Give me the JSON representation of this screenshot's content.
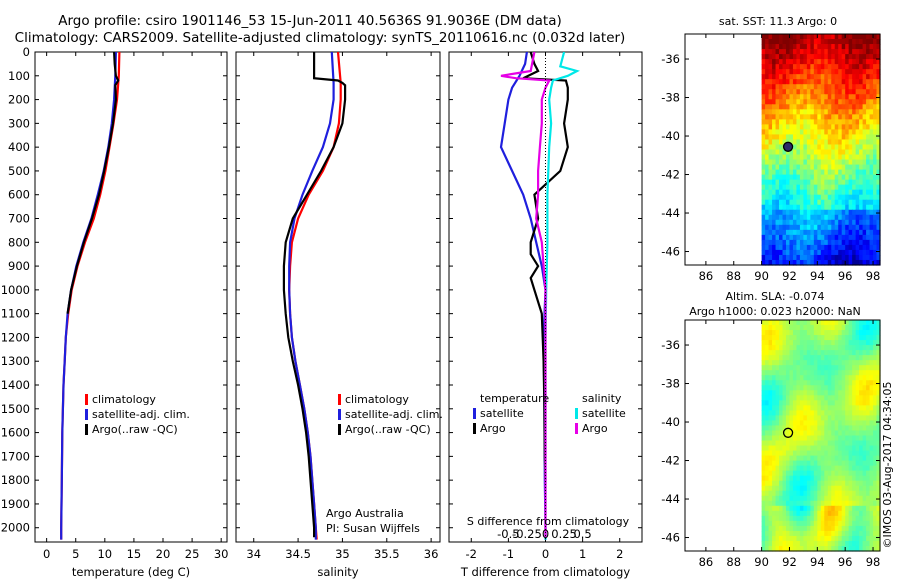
{
  "title": {
    "line1": "Argo profile: csiro 1901146_53 15-Jun-2011 40.5636S 91.9036E (DM data)",
    "line2": "Climatology: CARS2009. Satellite-adjusted climatology: synTS_20110616.nc (0.032d later)"
  },
  "colors": {
    "climatology": "#ff0000",
    "satellite": "#1f1fdd",
    "argo": "#000000",
    "sal_satellite": "#00e8e8",
    "sal_argo": "#e600e6"
  },
  "chart_data": [
    {
      "type": "line",
      "id": "temperature",
      "xlabel": "temperature (deg C)",
      "ylabel": "",
      "xlim": [
        -2,
        31
      ],
      "ylim": [
        2060,
        0
      ],
      "xticks": [
        "0",
        "5",
        "10",
        "15",
        "20",
        "25",
        "30"
      ],
      "xtick_values": [
        0,
        5,
        10,
        15,
        20,
        25,
        30
      ],
      "yticks": [
        "0",
        "100",
        "200",
        "300",
        "400",
        "500",
        "600",
        "700",
        "800",
        "900",
        "1000",
        "1100",
        "1200",
        "1300",
        "1400",
        "1500",
        "1600",
        "1700",
        "1800",
        "1900",
        "2000"
      ],
      "ytick_values": [
        0,
        100,
        200,
        300,
        400,
        500,
        600,
        700,
        800,
        900,
        1000,
        1100,
        1200,
        1300,
        1400,
        1500,
        1600,
        1700,
        1800,
        1900,
        2000
      ],
      "legend": [
        "climatology",
        "satellite-adj. clim.",
        "Argo(..raw -QC)"
      ],
      "series": [
        {
          "name": "climatology",
          "color": "climatology",
          "depth": [
            0,
            100,
            200,
            300,
            400,
            500,
            600,
            700,
            800,
            900,
            1000,
            1100,
            1200,
            1300,
            1400,
            1600,
            1800,
            2000,
            2050
          ],
          "values": [
            12.5,
            12.4,
            12.1,
            11.5,
            10.8,
            10.1,
            9.2,
            8.1,
            6.6,
            5.3,
            4.3,
            3.7,
            3.3,
            3.1,
            2.9,
            2.7,
            2.6,
            2.5,
            2.5
          ]
        },
        {
          "name": "satellite-adj. clim.",
          "color": "satellite",
          "depth": [
            0,
            100,
            200,
            300,
            400,
            500,
            600,
            700,
            800,
            900,
            1000,
            1100,
            1200,
            1300,
            1400,
            1600,
            1800,
            2000,
            2050
          ],
          "values": [
            11.9,
            11.8,
            11.6,
            11.2,
            10.6,
            9.8,
            8.8,
            7.7,
            6.3,
            5.1,
            4.2,
            3.6,
            3.3,
            3.1,
            2.9,
            2.7,
            2.6,
            2.5,
            2.5
          ]
        },
        {
          "name": "Argo(..raw -QC)",
          "color": "argo",
          "depth": [
            0,
            50,
            100,
            120,
            140,
            200,
            300,
            400,
            500,
            600,
            700,
            800,
            900,
            1000,
            1100
          ],
          "values": [
            11.6,
            11.7,
            11.9,
            12.3,
            11.8,
            11.9,
            11.4,
            10.7,
            9.9,
            9.0,
            7.8,
            6.4,
            5.2,
            4.2,
            3.6
          ]
        }
      ]
    },
    {
      "type": "line",
      "id": "salinity",
      "xlabel": "salinity",
      "ylabel": "",
      "xlim": [
        33.8,
        36.1
      ],
      "ylim": [
        2060,
        0
      ],
      "xticks": [
        "34",
        "34.5",
        "35",
        "35.5",
        "36"
      ],
      "xtick_values": [
        34,
        34.5,
        35,
        35.5,
        36
      ],
      "legend": [
        "climatology",
        "satellite-adj. clim.",
        "Argo(..raw -QC)"
      ],
      "annotation": [
        "Argo Australia",
        "PI: Susan Wijffels"
      ],
      "series": [
        {
          "name": "climatology",
          "color": "climatology",
          "depth": [
            0,
            130,
            200,
            300,
            400,
            500,
            600,
            700,
            800,
            900,
            1000,
            1100,
            1200,
            1300,
            1400,
            1500,
            1600,
            1700,
            1800,
            1900,
            2000,
            2050
          ],
          "values": [
            34.95,
            34.98,
            34.98,
            34.96,
            34.9,
            34.78,
            34.62,
            34.5,
            34.43,
            34.41,
            34.4,
            34.41,
            34.43,
            34.47,
            34.52,
            34.57,
            34.61,
            34.64,
            34.66,
            34.68,
            34.7,
            34.71
          ]
        },
        {
          "name": "satellite-adj. clim.",
          "color": "satellite",
          "depth": [
            0,
            130,
            200,
            300,
            400,
            500,
            600,
            700,
            800,
            900,
            1000,
            1100,
            1200,
            1300,
            1400,
            1500,
            1600,
            1700,
            1800,
            1900,
            2000,
            2050
          ],
          "values": [
            34.88,
            34.9,
            34.9,
            34.86,
            34.78,
            34.66,
            34.55,
            34.46,
            34.41,
            34.4,
            34.4,
            34.41,
            34.43,
            34.47,
            34.52,
            34.57,
            34.61,
            34.64,
            34.66,
            34.68,
            34.7,
            34.7
          ]
        },
        {
          "name": "Argo(..raw -QC)",
          "color": "argo",
          "depth": [
            0,
            80,
            110,
            120,
            130,
            140,
            200,
            300,
            400,
            500,
            600,
            700,
            800,
            900,
            1000,
            1100,
            1200,
            1300,
            1400,
            1500,
            1600,
            1700,
            1800,
            1900,
            2000,
            2040
          ],
          "values": [
            34.68,
            34.68,
            34.68,
            34.95,
            35.0,
            35.03,
            35.03,
            35.0,
            34.9,
            34.76,
            34.6,
            34.44,
            34.36,
            34.34,
            34.34,
            34.36,
            34.39,
            34.44,
            34.5,
            34.55,
            34.59,
            34.62,
            34.64,
            34.66,
            34.68,
            34.68
          ]
        }
      ]
    },
    {
      "type": "line",
      "id": "difference",
      "xlabel": "T difference from climatology",
      "xlabel_top": "S difference from climatology",
      "xlim": [
        -2.6,
        2.6
      ],
      "ylim": [
        2060,
        0
      ],
      "xticks": [
        "-2",
        "-1",
        "0",
        "1",
        "2"
      ],
      "xtick_values": [
        -2,
        -1,
        0,
        1,
        2
      ],
      "sticks": [
        "-0.5",
        "-0.25",
        "0",
        "0.25",
        "0.5"
      ],
      "stick_positions_T": [
        -2.1,
        -1.05,
        0,
        1.05,
        2.1
      ],
      "legend_temperature_title": "temperature",
      "legend_salinity_title": "salinity",
      "legend_temperature": [
        "satellite",
        "Argo"
      ],
      "legend_salinity": [
        "satellite",
        "Argo"
      ],
      "series": [
        {
          "name": "T satellite",
          "color": "satellite",
          "depth": [
            0,
            50,
            100,
            150,
            200,
            300,
            400,
            500,
            600,
            700,
            800,
            900,
            1000,
            1200,
            1500,
            1800,
            2000,
            2050
          ],
          "values": [
            -0.5,
            -0.55,
            -0.7,
            -0.9,
            -1.0,
            -1.1,
            -1.2,
            -0.9,
            -0.6,
            -0.4,
            -0.25,
            -0.1,
            0,
            -0.05,
            -0.03,
            -0.02,
            0,
            0
          ]
        },
        {
          "name": "T Argo",
          "color": "argo",
          "depth": [
            0,
            50,
            80,
            110,
            120,
            150,
            200,
            300,
            400,
            500,
            600,
            700,
            800,
            850,
            900,
            950,
            1000,
            1100,
            1300,
            1500,
            1700,
            1800
          ],
          "values": [
            -0.4,
            -0.3,
            -0.2,
            -0.6,
            0.55,
            0.6,
            0.6,
            0.5,
            0.6,
            0.4,
            -0.3,
            -0.2,
            -0.4,
            -0.4,
            -0.2,
            -0.4,
            -0.3,
            -0.1,
            -0.05,
            -0.03,
            -0.02,
            0
          ]
        },
        {
          "name": "S satellite",
          "color": "sal_satellite",
          "depth": [
            0,
            60,
            80,
            100,
            120,
            150,
            200,
            300,
            400,
            600,
            800,
            1000,
            1200,
            1500,
            1800,
            2000,
            2050
          ],
          "values": [
            0.5,
            0.4,
            0.85,
            0.6,
            0.2,
            0.15,
            0.1,
            0.15,
            0.1,
            0.05,
            0.05,
            0.02,
            0,
            0,
            0,
            0,
            0
          ]
        },
        {
          "name": "S Argo",
          "color": "sal_argo",
          "depth": [
            0,
            80,
            100,
            110,
            120,
            150,
            200,
            300,
            400,
            500,
            600,
            700,
            800,
            900,
            1000,
            1200,
            1500,
            1800,
            1900,
            2000,
            2040
          ],
          "values": [
            -0.3,
            -0.4,
            -1.2,
            -0.8,
            0.1,
            0.0,
            -0.1,
            -0.1,
            -0.15,
            -0.2,
            -0.2,
            -0.25,
            -0.1,
            -0.05,
            0,
            0,
            0,
            0,
            0,
            0,
            0
          ]
        }
      ]
    },
    {
      "type": "heatmap",
      "id": "sst_map",
      "title": "sat. SST: 11.3 Argo: 0",
      "xlim": [
        84.5,
        98.5
      ],
      "ylim": [
        -46.7,
        -34.7
      ],
      "xticks": [
        "86",
        "88",
        "90",
        "92",
        "94",
        "96",
        "98"
      ],
      "xtick_values": [
        86,
        88,
        90,
        92,
        94,
        96,
        98
      ],
      "yticks": [
        "-36",
        "-38",
        "-40",
        "-42",
        "-44",
        "-46"
      ],
      "ytick_values": [
        -36,
        -38,
        -40,
        -42,
        -44,
        -46
      ],
      "data_extent_lon": [
        90,
        98.5
      ],
      "marker": {
        "lon": 91.9,
        "lat": -40.56,
        "filled": true
      }
    },
    {
      "type": "heatmap",
      "id": "sla_map",
      "title_line1": "Altim. SLA: -0.074",
      "title_line2": "Argo h1000: 0.023 h2000: NaN",
      "xlim": [
        84.5,
        98.5
      ],
      "ylim": [
        -46.7,
        -34.7
      ],
      "xticks": [
        "86",
        "88",
        "90",
        "92",
        "94",
        "96",
        "98"
      ],
      "xtick_values": [
        86,
        88,
        90,
        92,
        94,
        96,
        98
      ],
      "yticks": [
        "-36",
        "-38",
        "-40",
        "-42",
        "-44",
        "-46"
      ],
      "ytick_values": [
        -36,
        -38,
        -40,
        -42,
        -44,
        -46
      ],
      "data_extent_lon": [
        90,
        98.5
      ],
      "marker": {
        "lon": 91.9,
        "lat": -40.56,
        "filled": false
      }
    }
  ],
  "footer": {
    "credit": "©IMOS 03-Aug-2017 04:34:05"
  }
}
